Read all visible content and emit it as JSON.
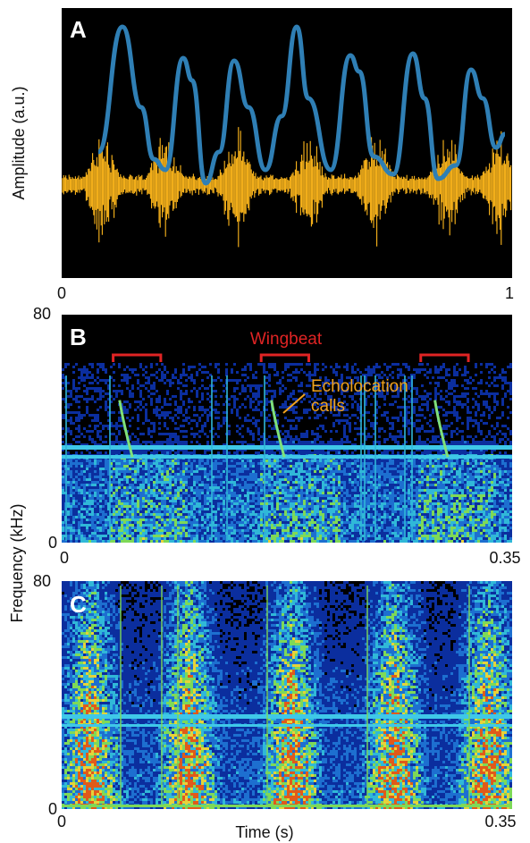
{
  "figure": {
    "ylabel_A": "Amplitude (a.u.)",
    "ylabel_BC": "Frequency (kHz)",
    "xlabel": "Time (s)"
  },
  "colors": {
    "panel_bg": "#000000",
    "wingbeat_curve": "#2f7fb5",
    "audio": "#ffb81c",
    "bracket": "#e02424",
    "echo_label": "#f0a21e",
    "spectro_low": "#06208a",
    "spectro_mid": "#20a8d8",
    "spectro_band": "#3fc8e8",
    "call_trace": "#7fe07a"
  },
  "chart_data": [
    {
      "panel": "A",
      "type": "line",
      "xlabel": "",
      "ylabel": "Amplitude (a.u.)",
      "xlim": [
        0,
        1
      ],
      "x_tick_labels": [
        "0",
        "1"
      ],
      "series": [
        {
          "values_note": "wingbeat oscillation",
          "x": [
            0.08,
            0.13,
            0.24,
            0.32,
            0.38,
            0.51,
            0.64,
            0.76,
            0.87,
            0.98
          ],
          "y": [
            0.45,
            0.93,
            0.79,
            0.03,
            0.75,
            0.93,
            0.88,
            0.82,
            0.84,
            0.52
          ]
        }
      ],
      "audio_bursts_x": [
        0.12,
        0.38,
        0.54,
        0.74,
        0.95
      ]
    },
    {
      "panel": "B",
      "type": "heatmap",
      "xlim": [
        0,
        0.35
      ],
      "ylim": [
        0,
        80
      ],
      "x_tick_labels": [
        "0",
        "0.35"
      ],
      "y_tick_labels": [
        "0",
        "80"
      ],
      "ylabel": "Frequency (kHz)",
      "annotations": {
        "wingbeat": "Wingbeat",
        "echolocation": "Echolocation calls"
      },
      "wingbeat_brackets": [
        [
          0.04,
          0.077
        ],
        [
          0.155,
          0.192
        ],
        [
          0.279,
          0.316
        ]
      ],
      "echolocation_calls": [
        {
          "t_start": 0.045,
          "t_end": 0.055,
          "f_start": 50,
          "f_end": 30
        },
        {
          "t_start": 0.163,
          "t_end": 0.173,
          "f_start": 50,
          "f_end": 30
        },
        {
          "t_start": 0.29,
          "t_end": 0.3,
          "f_start": 50,
          "f_end": 30
        }
      ],
      "constant_bands_khz": [
        33,
        30
      ]
    },
    {
      "panel": "C",
      "type": "heatmap",
      "xlim": [
        0,
        0.35
      ],
      "ylim": [
        0,
        80
      ],
      "x_tick_labels": [
        "0",
        "0.35"
      ],
      "y_tick_labels": [
        "0",
        "80"
      ],
      "xlabel": "Time (s)",
      "constant_bands_khz": [
        33,
        30
      ]
    }
  ]
}
